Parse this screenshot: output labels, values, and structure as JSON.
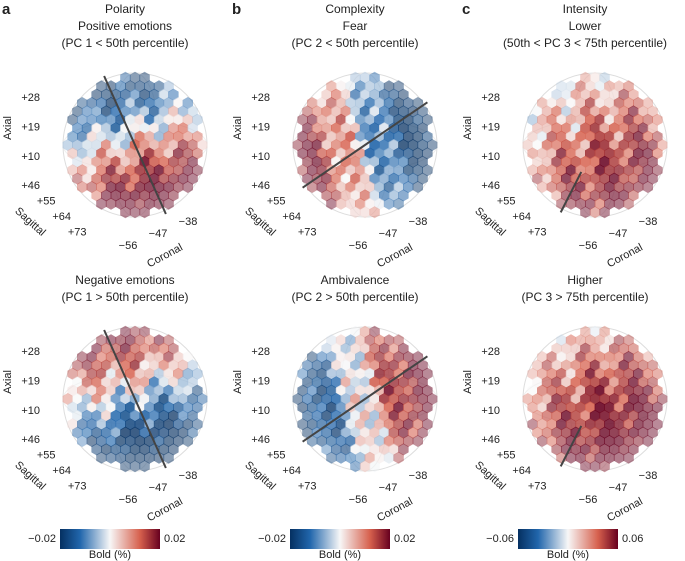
{
  "axes": {
    "axial_label": "Axial",
    "axial_ticks": [
      "+28",
      "+19",
      "+10"
    ],
    "sagittal_label": "Sagittal",
    "sagittal_ticks": [
      "+46",
      "+55",
      "+64",
      "+73"
    ],
    "coronal_label": "Coronal",
    "coronal_ticks": [
      "−56",
      "−47",
      "−38"
    ]
  },
  "columns": [
    {
      "letter": "a",
      "panels": [
        {
          "title_lines": [
            "Polarity",
            "Positive emotions",
            "(PC 1 < 50th percentile)"
          ]
        },
        {
          "title_lines": [
            "Negative emotions",
            "(PC 1 > 50th percentile)"
          ]
        }
      ],
      "colorbar": {
        "min": "−0.02",
        "max": "0.02",
        "label": "Bold (%)"
      }
    },
    {
      "letter": "b",
      "panels": [
        {
          "title_lines": [
            "Complexity",
            "Fear",
            "(PC 2 < 50th percentile)"
          ]
        },
        {
          "title_lines": [
            "Ambivalence",
            "(PC 2 > 50th percentile)"
          ]
        }
      ],
      "colorbar": {
        "min": "−0.02",
        "max": "0.02",
        "label": "Bold (%)"
      }
    },
    {
      "letter": "c",
      "panels": [
        {
          "title_lines": [
            "Intensity",
            "Lower",
            "(50th < PC 3 < 75th percentile)"
          ]
        },
        {
          "title_lines": [
            "Higher",
            "(PC 3 > 75th percentile)"
          ]
        }
      ],
      "colorbar": {
        "min": "−0.06",
        "max": "0.06",
        "label": "Bold (%)"
      }
    }
  ]
}
